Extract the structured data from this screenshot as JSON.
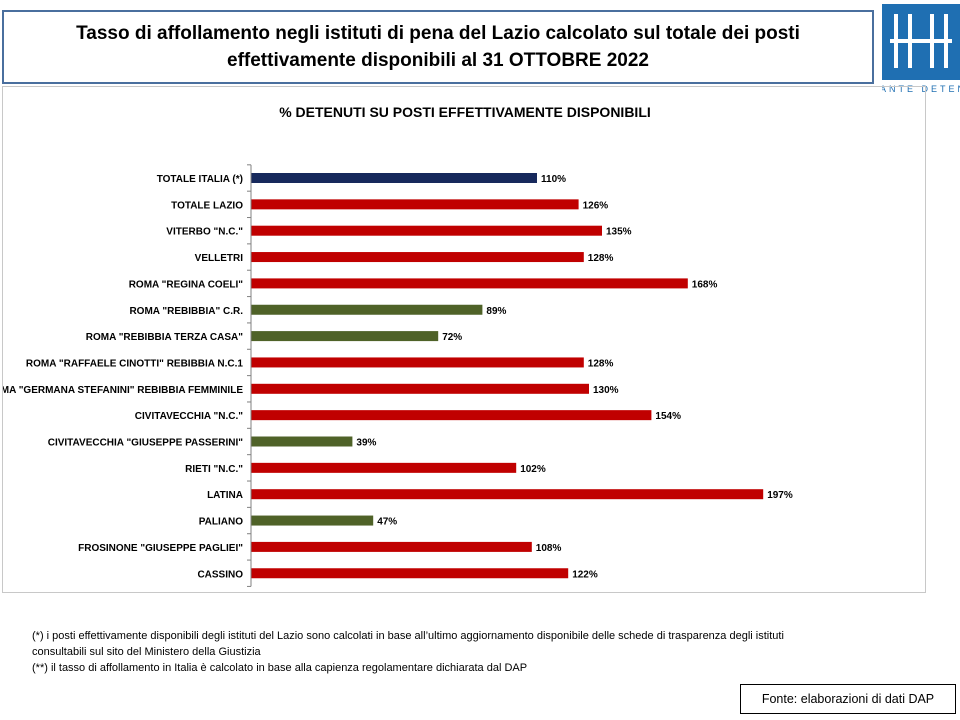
{
  "header": {
    "title_line1": "Tasso di affollamento negli istituti di pena del Lazio calcolato sul totale dei posti",
    "title_line2": "effettivamente disponibili al 31 OTTOBRE  2022"
  },
  "logo": {
    "icon": "garante-logo-icon",
    "color": "#1f6fb2",
    "text": "GARANTE DETENUTI"
  },
  "colors": {
    "italy": "#17295c",
    "over": "#c00000",
    "under": "#4f6228"
  },
  "chart_data": {
    "type": "bar",
    "orientation": "horizontal",
    "title": "% DETENUTI SU POSTI EFFETTIVAMENTE DISPONIBILI",
    "xlabel": "",
    "ylabel": "",
    "xlim": [
      0,
      200
    ],
    "grid": false,
    "legend": "none",
    "categories": [
      "TOTALE ITALIA (*)",
      "TOTALE LAZIO",
      "VITERBO \"N.C.\"",
      "VELLETRI",
      "ROMA \"REGINA COELI\"",
      "ROMA \"REBIBBIA\" C.R.",
      "ROMA \"REBIBBIA TERZA CASA\"",
      "ROMA \"RAFFAELE CINOTTI\" REBIBBIA N.C.1",
      "ROMA \"GERMANA STEFANINI\" REBIBBIA FEMMINILE",
      "CIVITAVECCHIA \"N.C.\"",
      "CIVITAVECCHIA \"GIUSEPPE PASSERINI\"",
      "RIETI \"N.C.\"",
      "LATINA",
      "PALIANO",
      "FROSINONE \"GIUSEPPE PAGLIEI\"",
      "CASSINO"
    ],
    "values": [
      110,
      126,
      135,
      128,
      168,
      89,
      72,
      128,
      130,
      154,
      39,
      102,
      197,
      47,
      108,
      122
    ],
    "data_labels": [
      "110%",
      "126%",
      "135%",
      "128%",
      "168%",
      "89%",
      "72%",
      "128%",
      "130%",
      "154%",
      "39%",
      "102%",
      "197%",
      "47%",
      "108%",
      "122%"
    ],
    "bar_colors": [
      "#17295c",
      "#c00000",
      "#c00000",
      "#c00000",
      "#c00000",
      "#4f6228",
      "#4f6228",
      "#c00000",
      "#c00000",
      "#c00000",
      "#4f6228",
      "#c00000",
      "#c00000",
      "#4f6228",
      "#c00000",
      "#c00000"
    ]
  },
  "notes": {
    "line1": "(*) i posti effettivamente disponibili  degli istituti del Lazio sono  calcolati in base all’ultimo aggiornamento disponibile  delle schede  di trasparenza degli istituti",
    "line2": "consultabili  sul sito del Ministero della Giustizia",
    "line3": "(**) il tasso di affollamento  in Italia è calcolato in base alla capienza regolamentare dichiarata dal DAP"
  },
  "source": {
    "text": "Fonte: elaborazioni di dati DAP"
  }
}
